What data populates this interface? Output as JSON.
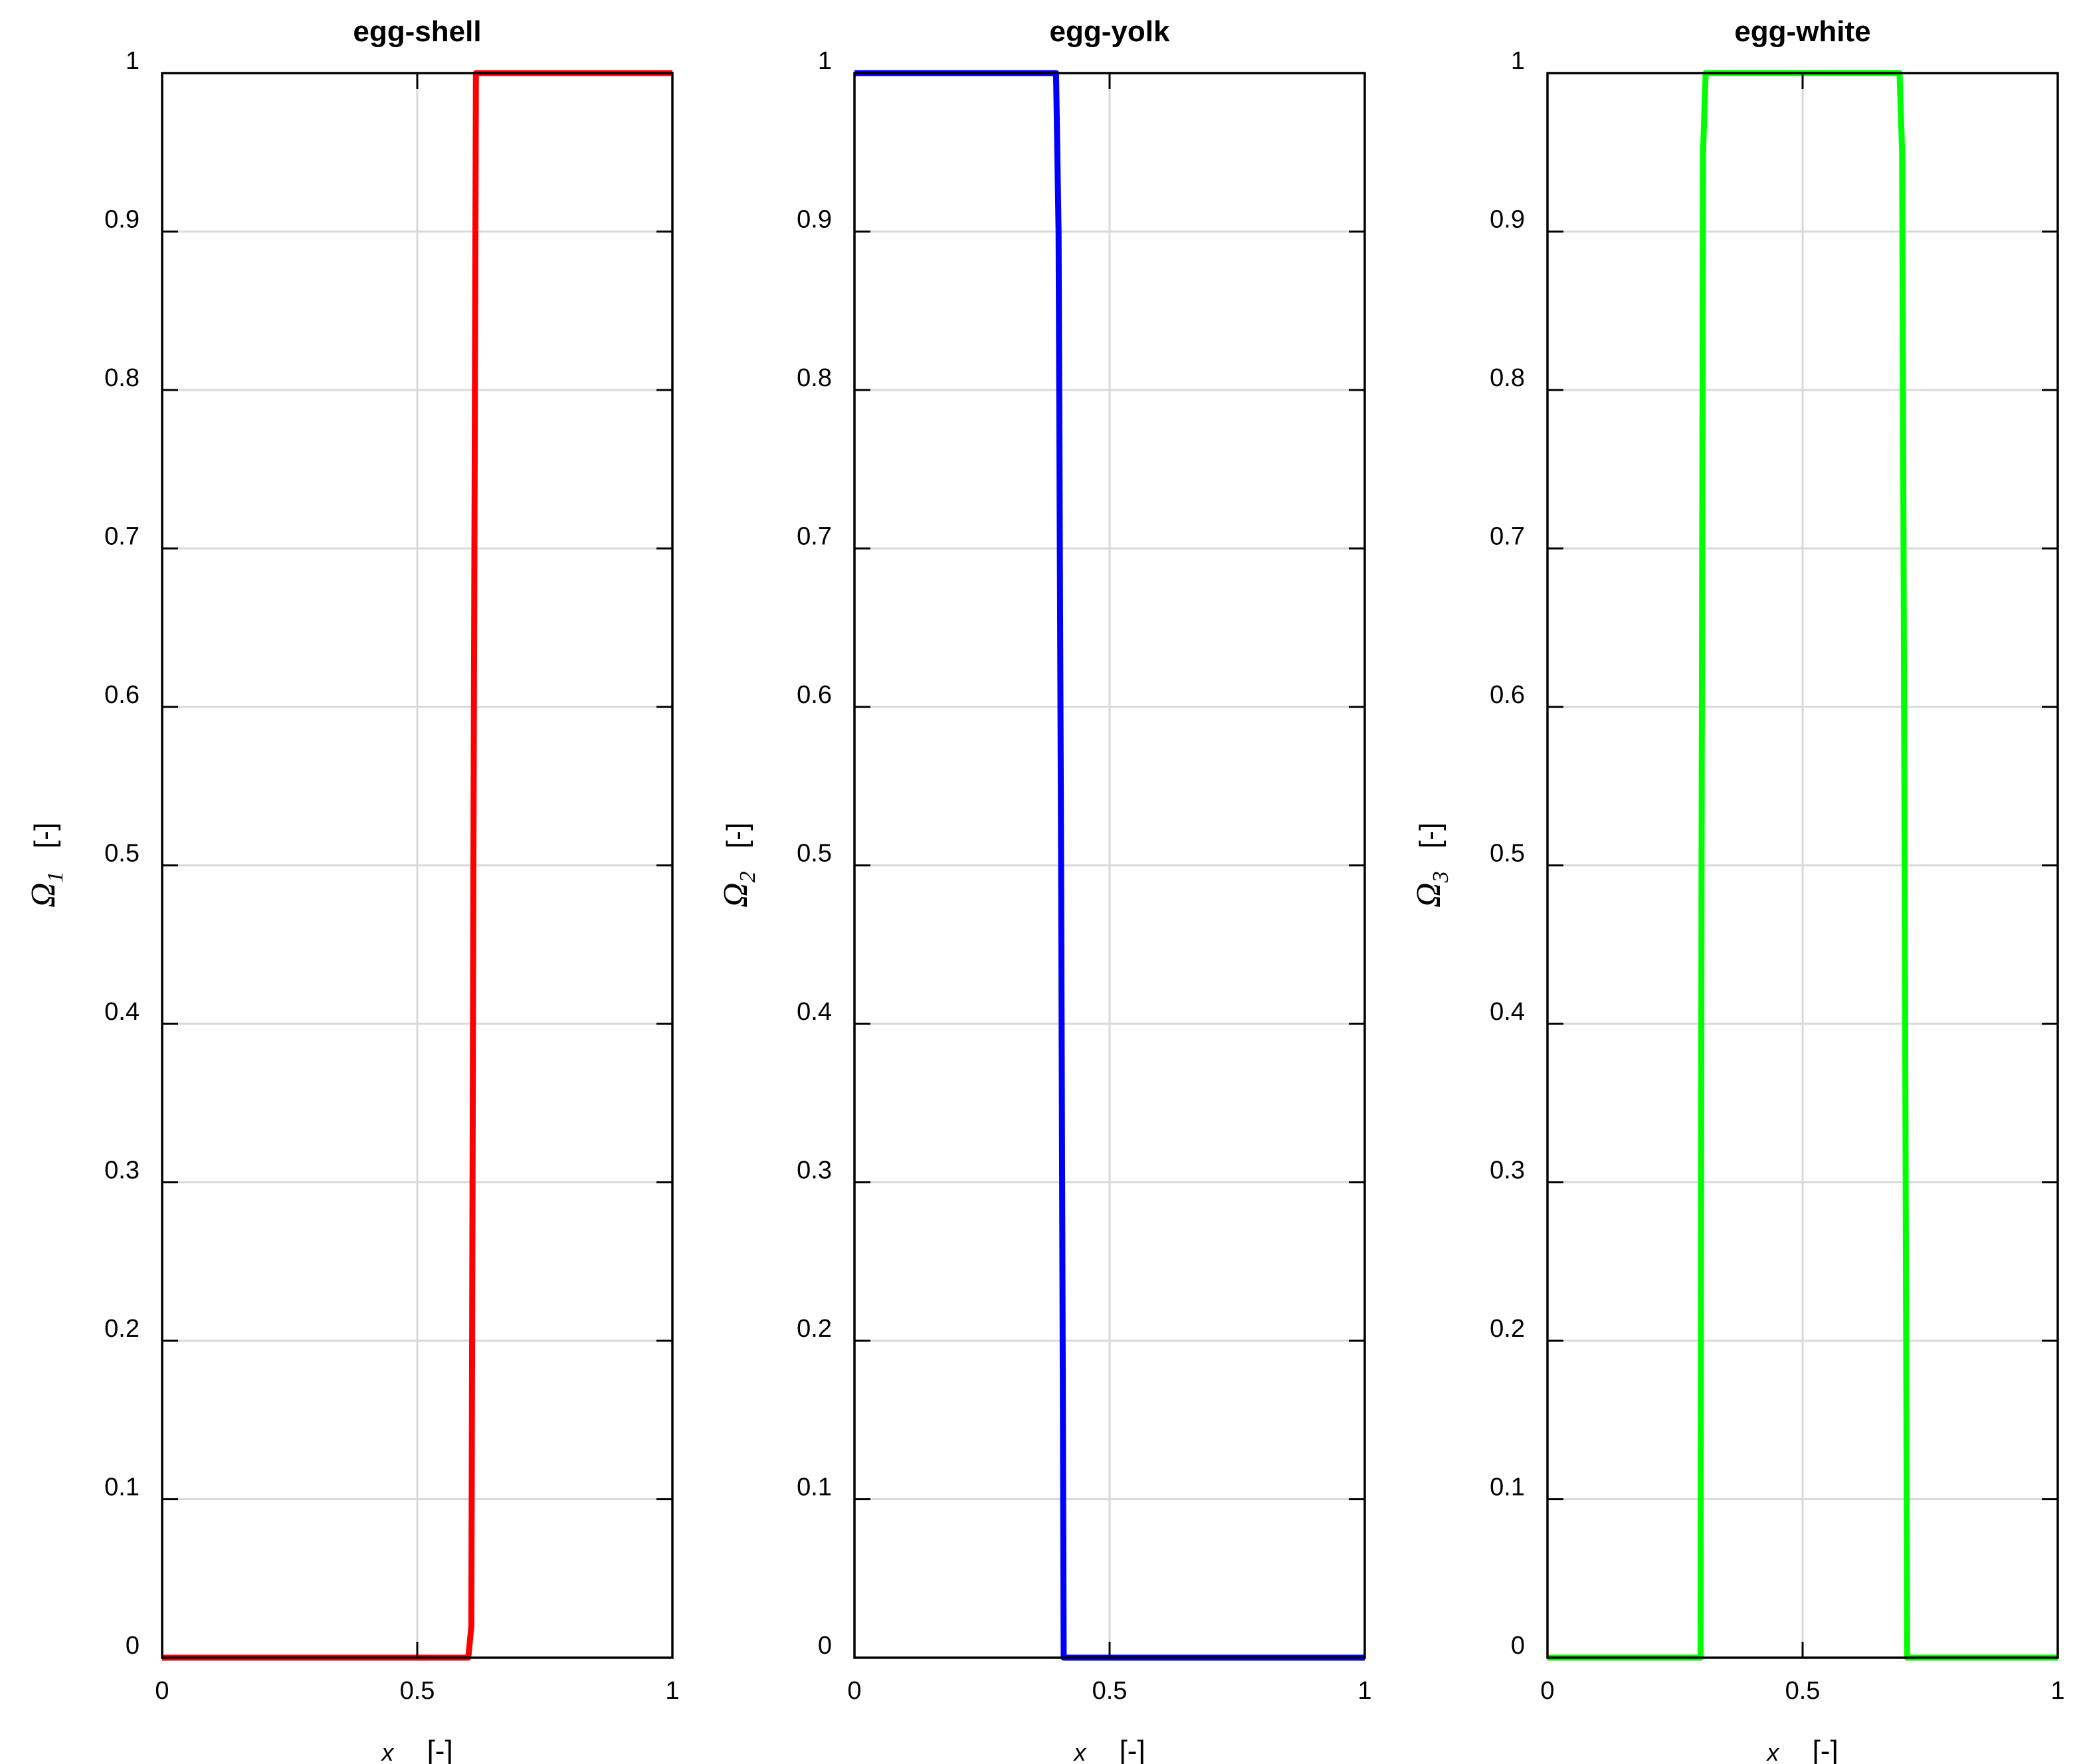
{
  "chart_data": [
    {
      "type": "line",
      "title": "egg-shell",
      "xlabel": {
        "symbol": "x",
        "unit": "[-]"
      },
      "ylabel": {
        "symbol": "Ω",
        "subscript": "1",
        "unit": "[-]"
      },
      "xlim": [
        0,
        1
      ],
      "ylim": [
        0,
        1
      ],
      "xticks": [
        "0",
        "0.5",
        "1"
      ],
      "yticks": [
        "0",
        "0.1",
        "0.2",
        "0.3",
        "0.4",
        "0.5",
        "0.6",
        "0.7",
        "0.8",
        "0.9",
        "1"
      ],
      "grid": true,
      "series": [
        {
          "color": "#ff0000",
          "x": [
            0,
            0.6,
            0.606,
            0.61,
            0.615,
            1
          ],
          "y": [
            0,
            0,
            0.02,
            0.5,
            1,
            1
          ]
        }
      ]
    },
    {
      "type": "line",
      "title": "egg-yolk",
      "xlabel": {
        "symbol": "x",
        "unit": "[-]"
      },
      "ylabel": {
        "symbol": "Ω",
        "subscript": "2",
        "unit": "[-]"
      },
      "xlim": [
        0,
        1
      ],
      "ylim": [
        0,
        1
      ],
      "xticks": [
        "0",
        "0.5",
        "1"
      ],
      "yticks": [
        "0",
        "0.1",
        "0.2",
        "0.3",
        "0.4",
        "0.5",
        "0.6",
        "0.7",
        "0.8",
        "0.9",
        "1"
      ],
      "grid": true,
      "series": [
        {
          "color": "#0000ff",
          "x": [
            0,
            0.395,
            0.4,
            0.405,
            0.41,
            1
          ],
          "y": [
            1,
            1,
            0.9,
            0.5,
            0,
            0
          ]
        }
      ]
    },
    {
      "type": "line",
      "title": "egg-white",
      "xlabel": {
        "symbol": "x",
        "unit": "[-]"
      },
      "ylabel": {
        "symbol": "Ω",
        "subscript": "3",
        "unit": "[-]"
      },
      "xlim": [
        0,
        1
      ],
      "ylim": [
        0,
        1
      ],
      "xticks": [
        "0",
        "0.5",
        "1"
      ],
      "yticks": [
        "0",
        "0.1",
        "0.2",
        "0.3",
        "0.4",
        "0.5",
        "0.6",
        "0.7",
        "0.8",
        "0.9",
        "1"
      ],
      "grid": true,
      "series": [
        {
          "color": "#00ff00",
          "x": [
            0,
            0.3,
            0.302,
            0.305,
            0.31,
            0.69,
            0.695,
            0.7,
            0.705,
            1
          ],
          "y": [
            0,
            0,
            0.5,
            0.95,
            1,
            1,
            0.95,
            0.5,
            0,
            0
          ]
        }
      ]
    }
  ]
}
